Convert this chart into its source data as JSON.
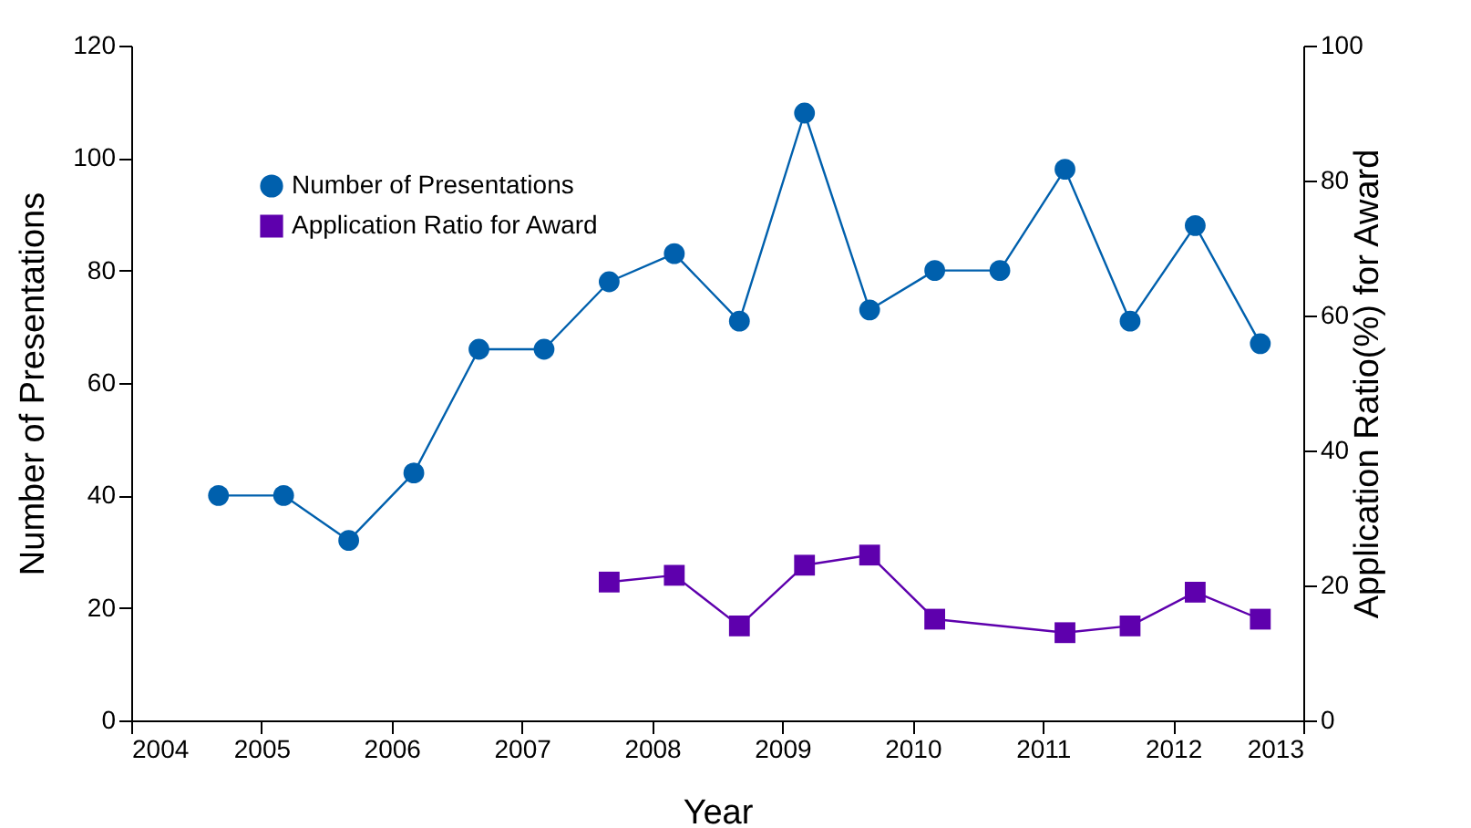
{
  "chart_data": {
    "type": "line",
    "xlabel": "Year",
    "ylabel": "Number of Presentations",
    "y2label": "Application Ratio(%) for Award",
    "xlim": [
      2004,
      2013
    ],
    "xticks": [
      2004,
      2005,
      2006,
      2007,
      2008,
      2009,
      2010,
      2011,
      2012,
      2013
    ],
    "ylim": [
      0,
      120
    ],
    "yticks": [
      0,
      20,
      40,
      60,
      80,
      100,
      120
    ],
    "y2lim": [
      0,
      100
    ],
    "y2ticks": [
      0,
      20,
      40,
      60,
      80,
      100
    ],
    "grid": false,
    "legend": "top left",
    "line_style": "solid",
    "series": [
      {
        "name": "Number of Presentations",
        "color": "#0060ad",
        "marker": "circle",
        "x": [
          2004.67,
          2005.17,
          2005.67,
          2006.17,
          2006.67,
          2007.17,
          2007.67,
          2008.17,
          2008.67,
          2009.17,
          2009.67,
          2010.17,
          2010.67,
          2011.17,
          2011.67,
          2012.17,
          2012.67
        ],
        "values": [
          40,
          40,
          32,
          44,
          66,
          66,
          78,
          83,
          71,
          108,
          73,
          80,
          80,
          98,
          71,
          88,
          67
        ]
      },
      {
        "name": "Application Ratio for Award",
        "color": "#5e00ad",
        "marker": "square",
        "axis": "y2",
        "x": [
          2007.67,
          2008.17,
          2008.67,
          2009.17,
          2009.67,
          2010.17,
          2011.17,
          2011.67,
          2012.17,
          2012.67
        ],
        "values": [
          20.5,
          21.5,
          14,
          23,
          24.5,
          15,
          13,
          14,
          19,
          15
        ]
      }
    ]
  }
}
